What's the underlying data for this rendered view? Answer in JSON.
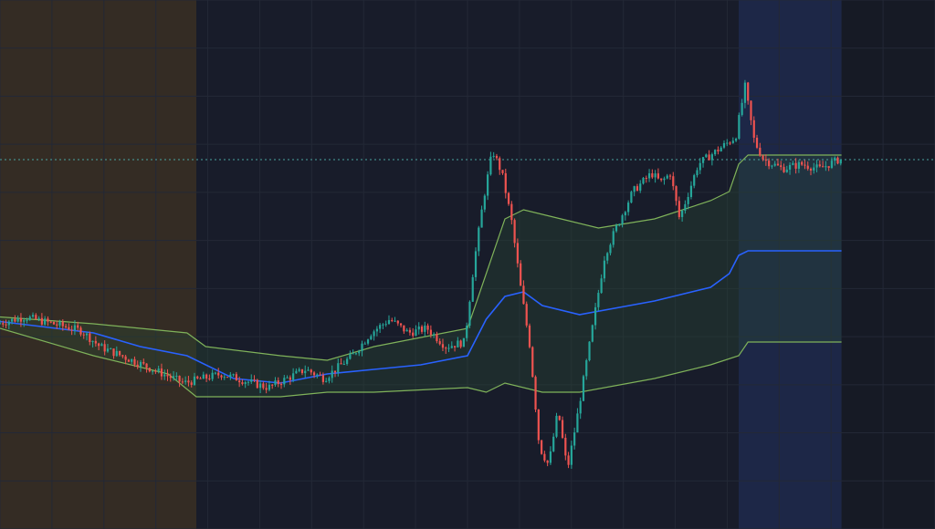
{
  "theme": {
    "background": "#161a25",
    "grid": "#232836",
    "candle_up": "#26a69a",
    "candle_down": "#ef5350",
    "band_line": "#7fb25a",
    "mid_line": "#2962ff",
    "band_fill": "#2a4a34",
    "price_line": "#4aa3a0",
    "session_colors": [
      "#3a3024",
      "#1c2133",
      "#1e2a4d"
    ]
  },
  "chart_data": {
    "type": "candlestick",
    "title": "",
    "xlabel": "",
    "ylabel": "",
    "x_labels_shown": false,
    "y_labels_shown": false,
    "grid": true,
    "session_shading": [
      {
        "from": 0,
        "to": 0.21
      },
      {
        "from": 0.21,
        "to": 0.79
      },
      {
        "from": 0.79,
        "to": 0.9
      }
    ],
    "current_price_line": 0.73,
    "price_keypoints": [
      [
        0.0,
        0.37
      ],
      [
        0.03,
        0.385
      ],
      [
        0.06,
        0.37
      ],
      [
        0.09,
        0.355
      ],
      [
        0.11,
        0.32
      ],
      [
        0.15,
        0.285
      ],
      [
        0.2,
        0.24
      ],
      [
        0.24,
        0.26
      ],
      [
        0.29,
        0.23
      ],
      [
        0.33,
        0.27
      ],
      [
        0.35,
        0.25
      ],
      [
        0.38,
        0.3
      ],
      [
        0.4,
        0.35
      ],
      [
        0.42,
        0.38
      ],
      [
        0.44,
        0.35
      ],
      [
        0.46,
        0.36
      ],
      [
        0.48,
        0.32
      ],
      [
        0.5,
        0.33
      ],
      [
        0.51,
        0.5
      ],
      [
        0.52,
        0.64
      ],
      [
        0.53,
        0.75
      ],
      [
        0.54,
        0.7
      ],
      [
        0.55,
        0.6
      ],
      [
        0.56,
        0.45
      ],
      [
        0.57,
        0.32
      ],
      [
        0.58,
        0.1
      ],
      [
        0.59,
        0.06
      ],
      [
        0.6,
        0.18
      ],
      [
        0.61,
        0.05
      ],
      [
        0.62,
        0.16
      ],
      [
        0.64,
        0.4
      ],
      [
        0.65,
        0.52
      ],
      [
        0.66,
        0.57
      ],
      [
        0.68,
        0.66
      ],
      [
        0.7,
        0.7
      ],
      [
        0.71,
        0.68
      ],
      [
        0.72,
        0.7
      ],
      [
        0.73,
        0.6
      ],
      [
        0.75,
        0.72
      ],
      [
        0.77,
        0.75
      ],
      [
        0.79,
        0.78
      ],
      [
        0.8,
        0.89
      ],
      [
        0.81,
        0.77
      ],
      [
        0.82,
        0.73
      ],
      [
        0.84,
        0.71
      ],
      [
        0.86,
        0.72
      ],
      [
        0.88,
        0.71
      ],
      [
        0.9,
        0.73
      ]
    ],
    "upper_band_keypoints": [
      [
        0.0,
        0.385
      ],
      [
        0.1,
        0.37
      ],
      [
        0.2,
        0.35
      ],
      [
        0.22,
        0.32
      ],
      [
        0.3,
        0.3
      ],
      [
        0.35,
        0.29
      ],
      [
        0.4,
        0.32
      ],
      [
        0.45,
        0.34
      ],
      [
        0.5,
        0.36
      ],
      [
        0.52,
        0.48
      ],
      [
        0.54,
        0.6
      ],
      [
        0.56,
        0.62
      ],
      [
        0.6,
        0.6
      ],
      [
        0.64,
        0.58
      ],
      [
        0.7,
        0.6
      ],
      [
        0.76,
        0.64
      ],
      [
        0.78,
        0.66
      ],
      [
        0.79,
        0.72
      ],
      [
        0.8,
        0.74
      ],
      [
        0.9,
        0.74
      ]
    ],
    "mid_line_keypoints": [
      [
        0.0,
        0.375
      ],
      [
        0.1,
        0.35
      ],
      [
        0.15,
        0.32
      ],
      [
        0.2,
        0.3
      ],
      [
        0.25,
        0.25
      ],
      [
        0.3,
        0.24
      ],
      [
        0.35,
        0.26
      ],
      [
        0.4,
        0.27
      ],
      [
        0.45,
        0.28
      ],
      [
        0.5,
        0.3
      ],
      [
        0.52,
        0.38
      ],
      [
        0.54,
        0.43
      ],
      [
        0.56,
        0.44
      ],
      [
        0.58,
        0.41
      ],
      [
        0.62,
        0.39
      ],
      [
        0.7,
        0.42
      ],
      [
        0.76,
        0.45
      ],
      [
        0.78,
        0.48
      ],
      [
        0.79,
        0.52
      ],
      [
        0.8,
        0.53
      ],
      [
        0.9,
        0.53
      ]
    ],
    "lower_band_keypoints": [
      [
        0.0,
        0.36
      ],
      [
        0.1,
        0.3
      ],
      [
        0.18,
        0.26
      ],
      [
        0.21,
        0.21
      ],
      [
        0.3,
        0.21
      ],
      [
        0.35,
        0.22
      ],
      [
        0.4,
        0.22
      ],
      [
        0.5,
        0.23
      ],
      [
        0.52,
        0.22
      ],
      [
        0.54,
        0.24
      ],
      [
        0.58,
        0.22
      ],
      [
        0.62,
        0.22
      ],
      [
        0.7,
        0.25
      ],
      [
        0.76,
        0.28
      ],
      [
        0.79,
        0.3
      ],
      [
        0.8,
        0.33
      ],
      [
        0.9,
        0.33
      ]
    ]
  }
}
